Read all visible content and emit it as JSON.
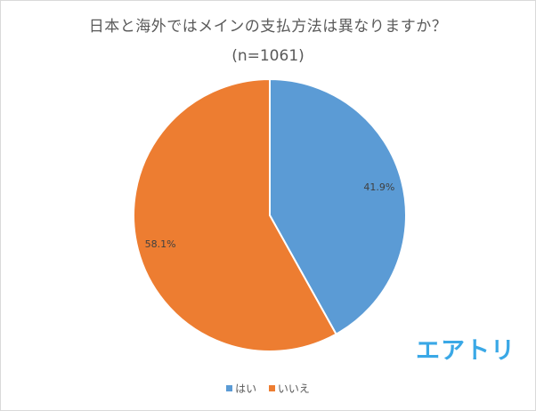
{
  "chart_data": {
    "type": "pie",
    "title": "日本と海外ではメインの支払方法は異なりますか？",
    "subtitle": "(n=1061)",
    "categories": [
      "はい",
      "いいえ"
    ],
    "values": [
      41.9,
      58.1
    ],
    "labels": [
      "41.9%",
      "58.1%"
    ],
    "colors": [
      "#5b9bd5",
      "#ed7d31"
    ],
    "legend_position": "bottom"
  },
  "logo": {
    "text": "エアトリ",
    "color": "#3aa8e6"
  }
}
